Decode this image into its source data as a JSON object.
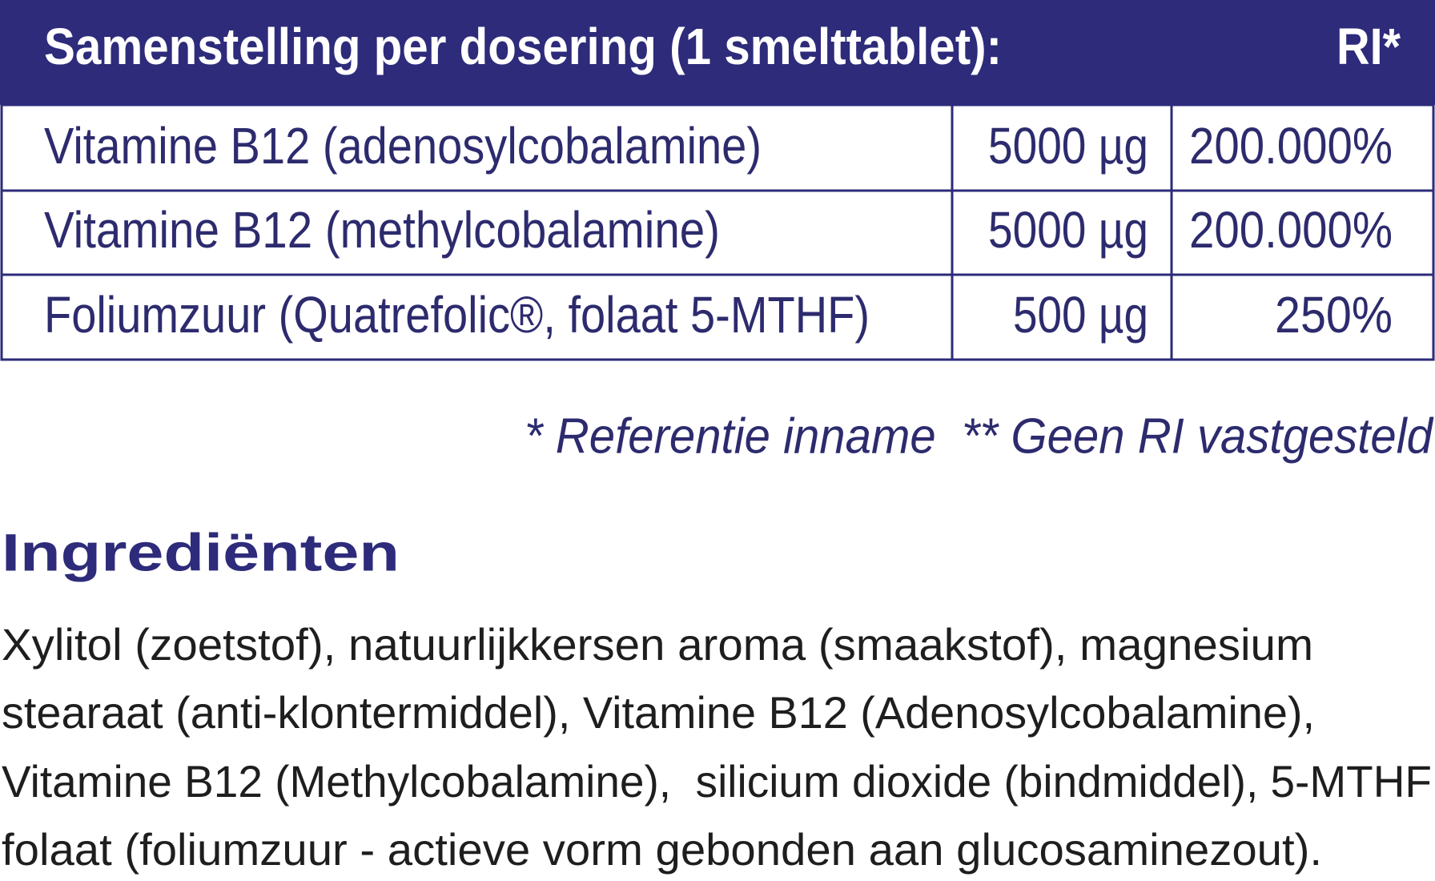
{
  "header": {
    "title": "Samenstelling per dosering (1 smelttablet):",
    "ri": "RI*"
  },
  "table": {
    "rows": [
      [
        "Vitamine B12 (adenosylcobalamine)",
        "5000 µg",
        "200.000%"
      ],
      [
        "Vitamine B12 (methylcobalamine)",
        "5000 µg",
        "200.000%"
      ],
      [
        "Foliumzuur (Quatrefolic®, folaat 5-MTHF)",
        "500 µg",
        "250%"
      ]
    ]
  },
  "footnote": "* Referentie inname  ** Geen RI vastgesteld",
  "ingredients": {
    "title": "Ingrediënten",
    "lines": [
      "Xylitol (zoetstof), natuurlijkkersen aroma (smaakstof), magnesium",
      "stearaat (anti-klontermiddel), Vitamine B12 (Adenosylcobalamine),",
      "Vitamine B12 (Methylcobalamine),  silicium dioxide (bindmiddel), 5-MTHF",
      "folaat (foliumzuur - actieve vorm gebonden aan glucosaminezout)."
    ]
  }
}
